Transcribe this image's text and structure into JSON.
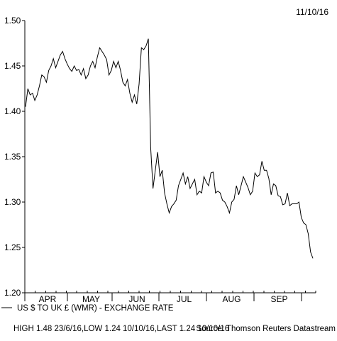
{
  "header": {
    "date": "11/10/16"
  },
  "legend": {
    "series_label": "US $ TO UK £ (WMR) - EXCHANGE RATE"
  },
  "footer": {
    "stats": "HIGH 1.48 23/6/16,LOW 1.24 10/10/16,LAST 1.24 10/10/16",
    "source": "Source: Thomson Reuters Datastream"
  },
  "colors": {
    "line": "#000000",
    "axis": "#000000",
    "background": "#ffffff"
  },
  "chart_data": {
    "type": "line",
    "title": "",
    "xlabel": "",
    "ylabel": "",
    "ylim": [
      1.2,
      1.5
    ],
    "y_ticks": [
      "1.20",
      "1.25",
      "1.30",
      "1.35",
      "1.40",
      "1.45",
      "1.50"
    ],
    "x_tick_labels": [
      "APR",
      "MAY",
      "JUN",
      "JUL",
      "AUG",
      "SEP"
    ],
    "grid": false,
    "legend_position": "bottom-left",
    "series": [
      {
        "values": [
          1.405,
          1.425,
          1.418,
          1.42,
          1.412,
          1.418,
          1.428,
          1.44,
          1.438,
          1.432,
          1.445,
          1.45,
          1.458,
          1.448,
          1.455,
          1.462,
          1.466,
          1.458,
          1.452,
          1.447,
          1.444,
          1.45,
          1.445,
          1.446,
          1.44,
          1.447,
          1.436,
          1.44,
          1.45,
          1.455,
          1.448,
          1.46,
          1.47,
          1.466,
          1.462,
          1.457,
          1.44,
          1.445,
          1.455,
          1.448,
          1.455,
          1.445,
          1.432,
          1.428,
          1.435,
          1.42,
          1.41,
          1.418,
          1.408,
          1.43,
          1.47,
          1.468,
          1.472,
          1.48,
          1.36,
          1.315,
          1.335,
          1.355,
          1.328,
          1.335,
          1.31,
          1.298,
          1.288,
          1.295,
          1.298,
          1.302,
          1.318,
          1.325,
          1.332,
          1.32,
          1.328,
          1.315,
          1.32,
          1.325,
          1.308,
          1.312,
          1.31,
          1.328,
          1.322,
          1.318,
          1.332,
          1.333,
          1.31,
          1.312,
          1.31,
          1.302,
          1.3,
          1.295,
          1.288,
          1.3,
          1.303,
          1.318,
          1.308,
          1.318,
          1.328,
          1.322,
          1.316,
          1.308,
          1.312,
          1.332,
          1.328,
          1.33,
          1.345,
          1.335,
          1.335,
          1.326,
          1.308,
          1.32,
          1.318,
          1.307,
          1.306,
          1.297,
          1.298,
          1.31,
          1.296,
          1.298,
          1.298,
          1.298,
          1.3,
          1.283,
          1.277,
          1.275,
          1.265,
          1.245,
          1.238
        ]
      }
    ]
  }
}
